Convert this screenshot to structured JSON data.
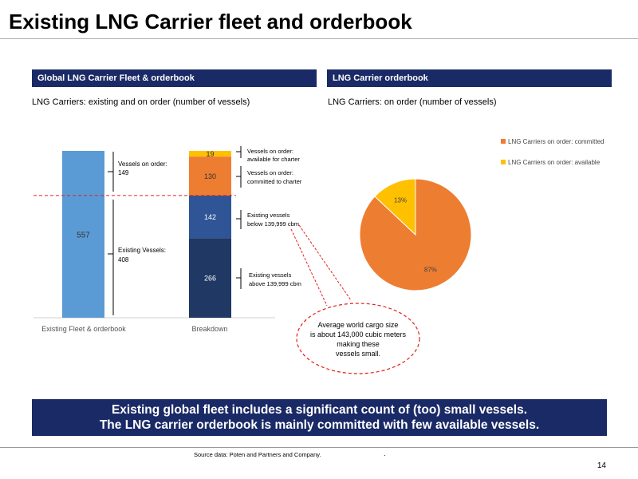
{
  "page": {
    "title": "Existing LNG Carrier fleet and orderbook",
    "banner_line1": "Existing global fleet includes a significant count of (too) small vessels.",
    "banner_line2": "The LNG carrier orderbook is mainly committed with few available vessels.",
    "source": "Source data: Poten and Partners and Company.",
    "source_dot": ".",
    "page_number": "14"
  },
  "left_panel": {
    "header": "Global LNG Carrier Fleet & orderbook",
    "subtitle": "LNG Carriers: existing and on order (number of vessels)",
    "callout": [
      "Average world cargo size",
      "is about 143,000 cubic meters",
      "making these",
      "vessels small."
    ]
  },
  "right_panel": {
    "header": "LNG Carrier orderbook",
    "subtitle": "LNG Carriers: on order (number of vessels)"
  },
  "chart_data": [
    {
      "type": "bar",
      "stacked": true,
      "categories": [
        "Existing Fleet & orderbook",
        "Breakdown"
      ],
      "total_label": "557",
      "ylim": [
        0,
        557
      ],
      "colors": {
        "total": "#5b9bd5",
        "above": "#1f3864",
        "below": "#2f5597",
        "committed": "#ed7d31",
        "available": "#ffc000"
      },
      "segments": [
        {
          "key": "above",
          "value": 266,
          "label": "266"
        },
        {
          "key": "below",
          "value": 142,
          "label": "142"
        },
        {
          "key": "committed",
          "value": 130,
          "label": "130"
        },
        {
          "key": "available",
          "value": 19,
          "label": "19"
        }
      ],
      "bracket_labels": {
        "on_order": [
          "Vessels on order:",
          "149"
        ],
        "existing": [
          "Existing Vessels:",
          "408"
        ]
      },
      "segment_annotations": {
        "available": [
          "Vessels on order:",
          "available for charter"
        ],
        "committed": [
          "Vessels on order:",
          "committed to charter"
        ],
        "below": [
          "Existing vessels",
          "below 139,999 cbm"
        ],
        "above": [
          "Existing vessels",
          "above 139,999 cbm"
        ]
      }
    },
    {
      "type": "pie",
      "series": [
        {
          "name": "LNG Carriers on order: committed",
          "value": 87,
          "label": "87%",
          "color": "#ed7d31"
        },
        {
          "name": "LNG Carriers on order: available",
          "value": 13,
          "label": "13%",
          "color": "#ffc000"
        }
      ],
      "legend": "top-right"
    }
  ]
}
